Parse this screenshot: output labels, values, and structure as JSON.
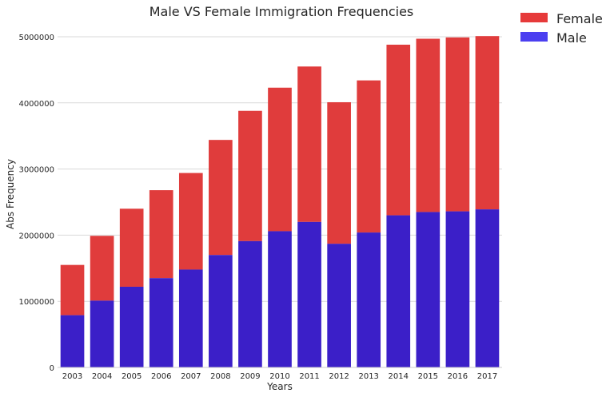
{
  "chart_data": {
    "type": "bar",
    "stacked": true,
    "title": "Male VS Female Immigration Frequencies",
    "xlabel": "Years",
    "ylabel": "Abs Frequency",
    "ylim": [
      0,
      5000000
    ],
    "yticks": [
      "0",
      "1000000",
      "2000000",
      "3000000",
      "4000000",
      "5000000"
    ],
    "grid": "horizontal",
    "legend_position": "outside-top-right",
    "categories": [
      "2003",
      "2004",
      "2005",
      "2006",
      "2007",
      "2008",
      "2009",
      "2010",
      "2011",
      "2012",
      "2013",
      "2014",
      "2015",
      "2016",
      "2017"
    ],
    "series": [
      {
        "name": "Male",
        "color": "#3b1fc8",
        "values": [
          790000,
          1010000,
          1220000,
          1350000,
          1480000,
          1700000,
          1910000,
          2060000,
          2200000,
          1870000,
          2040000,
          2300000,
          2350000,
          2360000,
          2390000
        ]
      },
      {
        "name": "Female",
        "color": "#e03c3c",
        "values": [
          760000,
          980000,
          1180000,
          1330000,
          1460000,
          1740000,
          1970000,
          2170000,
          2350000,
          2140000,
          2300000,
          2580000,
          2620000,
          2630000,
          2620000
        ]
      }
    ],
    "legend": [
      {
        "name": "Female",
        "color": "#e63a3a"
      },
      {
        "name": "Male",
        "color": "#4b3ff0"
      }
    ]
  }
}
